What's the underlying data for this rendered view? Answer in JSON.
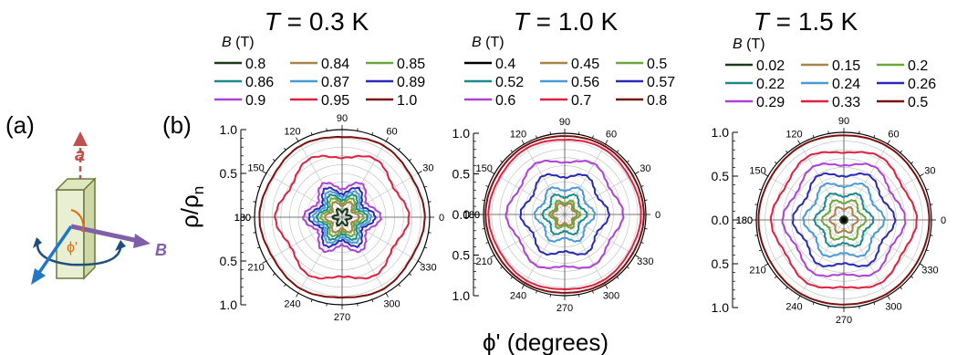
{
  "labels": {
    "panel_a": "(a)",
    "panel_b": "(b)",
    "axis_a": "a",
    "field_B": "B",
    "angle_phi": "ϕ'",
    "y_axis": "ρ/ρ",
    "y_axis_sub": "n",
    "x_axis": "ϕ' (degrees)",
    "legend_heading": "B (T)"
  },
  "colors": {
    "sample_face": "#e9efd2",
    "sample_side": "#cdd8a6",
    "sample_edge": "#6a7a3a",
    "axis_a": "#c0504d",
    "field_B": "#7f60a8",
    "current_arrow": "#1f77c8",
    "rotation_arrow": "#1f4e79",
    "angle_arc": "#e36c09"
  },
  "chart_data": [
    {
      "type": "polar-line",
      "title_var": "T",
      "title": " = 0.3 K",
      "theta_ticks": [
        0,
        30,
        60,
        90,
        120,
        150,
        180,
        210,
        240,
        270,
        300,
        330
      ],
      "r_ticks_upper": [
        "1.0",
        "0.5"
      ],
      "r_ticks_lower": [
        "0.5",
        "1.0"
      ],
      "center_label": "",
      "r_range": [
        0,
        1.0
      ],
      "series": [
        {
          "name": "0.8",
          "color": "#1a3a1a",
          "r": 0.08,
          "mod": 0.35,
          "n": 6
        },
        {
          "name": "0.84",
          "color": "#a8844a",
          "r": 0.16,
          "mod": 0.22,
          "n": 6
        },
        {
          "name": "0.85",
          "color": "#6aa83a",
          "r": 0.2,
          "mod": 0.22,
          "n": 6
        },
        {
          "name": "0.86",
          "color": "#1a8a8a",
          "r": 0.24,
          "mod": 0.2,
          "n": 6
        },
        {
          "name": "0.87",
          "color": "#4a9ad8",
          "r": 0.28,
          "mod": 0.18,
          "n": 6
        },
        {
          "name": "0.89",
          "color": "#2a2ab8",
          "r": 0.32,
          "mod": 0.18,
          "n": 6
        },
        {
          "name": "0.9",
          "color": "#b040d8",
          "r": 0.38,
          "mod": 0.16,
          "n": 6
        },
        {
          "name": "0.95",
          "color": "#e02040",
          "r": 0.72,
          "mod": 0.06,
          "n": 6
        },
        {
          "name": "1.0",
          "color": "#7a1010",
          "r": 0.93,
          "mod": 0.015,
          "n": 6
        }
      ]
    },
    {
      "type": "polar-line",
      "title_var": "T",
      "title": " = 1.0 K",
      "theta_ticks": [
        0,
        30,
        60,
        90,
        120,
        150,
        180,
        210,
        240,
        270,
        300,
        330
      ],
      "r_ticks_upper": [
        "1.0",
        "0.5"
      ],
      "r_ticks_lower": [
        "0.5",
        "1.0"
      ],
      "center_label": "0.0",
      "r_range": [
        0,
        1.0
      ],
      "series": [
        {
          "name": "0.4",
          "color": "#000000",
          "r": 0.0,
          "mod": 0,
          "n": 6
        },
        {
          "name": "0.45",
          "color": "#a8844a",
          "r": 0.13,
          "mod": 0.18,
          "n": 6
        },
        {
          "name": "0.5",
          "color": "#6aa83a",
          "r": 0.16,
          "mod": 0.18,
          "n": 6
        },
        {
          "name": "0.52",
          "color": "#1a8a8a",
          "r": 0.24,
          "mod": 0.14,
          "n": 6
        },
        {
          "name": "0.56",
          "color": "#4a9ad8",
          "r": 0.33,
          "mod": 0.12,
          "n": 6
        },
        {
          "name": "0.57",
          "color": "#2a2ab8",
          "r": 0.5,
          "mod": 0.09,
          "n": 6
        },
        {
          "name": "0.6",
          "color": "#b040d8",
          "r": 0.68,
          "mod": 0.06,
          "n": 6
        },
        {
          "name": "0.7",
          "color": "#e02040",
          "r": 0.93,
          "mod": 0.01,
          "n": 6
        },
        {
          "name": "0.8",
          "color": "#7a1010",
          "r": 0.97,
          "mod": 0.005,
          "n": 6
        }
      ]
    },
    {
      "type": "polar-line",
      "title_var": "T",
      "title": " = 1.5 K",
      "theta_ticks": [
        0,
        30,
        60,
        90,
        120,
        150,
        180,
        210,
        240,
        270,
        300,
        330
      ],
      "r_ticks_upper": [
        "1.0",
        "0.5"
      ],
      "r_ticks_lower": [
        "0.5",
        "1.0"
      ],
      "center_label": "0.0",
      "r_range": [
        0,
        1.0
      ],
      "series": [
        {
          "name": "0.02",
          "color": "#1a3a1a",
          "r": 0.04,
          "mod": 0,
          "n": 6
        },
        {
          "name": "0.15",
          "color": "#a8844a",
          "r": 0.14,
          "mod": 0.16,
          "n": 6
        },
        {
          "name": "0.2",
          "color": "#6aa83a",
          "r": 0.22,
          "mod": 0.14,
          "n": 6
        },
        {
          "name": "0.22",
          "color": "#1a8a8a",
          "r": 0.3,
          "mod": 0.12,
          "n": 6
        },
        {
          "name": "0.24",
          "color": "#4a9ad8",
          "r": 0.42,
          "mod": 0.1,
          "n": 6
        },
        {
          "name": "0.26",
          "color": "#2a2ab8",
          "r": 0.54,
          "mod": 0.08,
          "n": 6
        },
        {
          "name": "0.29",
          "color": "#b040d8",
          "r": 0.66,
          "mod": 0.06,
          "n": 6
        },
        {
          "name": "0.33",
          "color": "#e02040",
          "r": 0.8,
          "mod": 0.04,
          "n": 6
        },
        {
          "name": "0.5",
          "color": "#7a1010",
          "r": 0.97,
          "mod": 0.005,
          "n": 6
        }
      ]
    }
  ]
}
